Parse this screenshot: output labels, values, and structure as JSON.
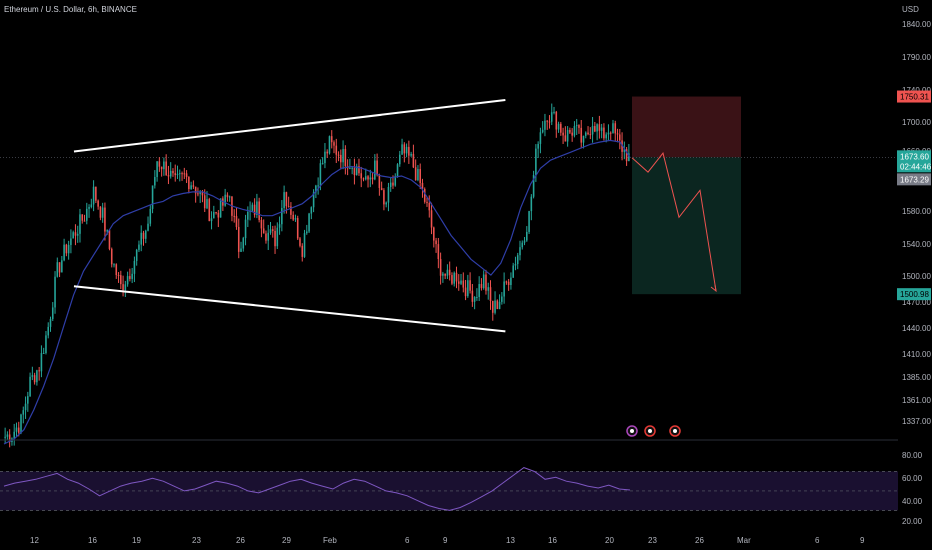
{
  "header": {
    "title": "Ethereum / U.S. Dollar, 6h, BINANCE"
  },
  "currency": "USD",
  "price_axis": {
    "ticks": [
      "1840.00",
      "1790.00",
      "1740.00",
      "1700.00",
      "1660.00",
      "1620.00",
      "1580.00",
      "1540.00",
      "1500.00",
      "1470.00",
      "1440.00",
      "1410.00",
      "1385.00",
      "1361.00",
      "1337.00"
    ],
    "tags": {
      "stop": "1750.31",
      "last": "1673.60",
      "countdown": "02:44:46",
      "ma": "1673.29",
      "target": "1500.98"
    }
  },
  "rsi_axis": {
    "ticks": [
      "80.00",
      "60.00",
      "40.00",
      "20.00"
    ]
  },
  "time_axis": {
    "ticks": [
      "12",
      "16",
      "19",
      "23",
      "26",
      "29",
      "Feb",
      "6",
      "9",
      "13",
      "16",
      "20",
      "23",
      "26",
      "Mar",
      "6",
      "9"
    ]
  },
  "colors": {
    "bg": "#000000",
    "up": "#26a69a",
    "down": "#ef5350",
    "ma": "#2f3ea8",
    "trendline": "#ffffff",
    "projection": "#ef5350",
    "stop_zone": "#3a1216",
    "target_zone": "#0b2620",
    "rsi_line": "#7e57c2"
  },
  "chart_data": {
    "type": "candlestick",
    "title": "Ethereum / U.S. Dollar, 6h, BINANCE",
    "interval": "6h",
    "ylabel": "USD",
    "ylim": [
      1317,
      1862
    ],
    "close_path": [
      1320,
      1325,
      1340,
      1390,
      1410,
      1460,
      1530,
      1560,
      1580,
      1600,
      1630,
      1600,
      1545,
      1510,
      1530,
      1560,
      1590,
      1670,
      1660,
      1640,
      1650,
      1640,
      1620,
      1600,
      1610,
      1625,
      1560,
      1600,
      1610,
      1580,
      1570,
      1630,
      1600,
      1560,
      1620,
      1660,
      1690,
      1680,
      1670,
      1660,
      1640,
      1660,
      1610,
      1640,
      1680,
      1670,
      1640,
      1600,
      1540,
      1520,
      1525,
      1510,
      1500,
      1520,
      1480,
      1500,
      1530,
      1560,
      1600,
      1700,
      1730,
      1720,
      1700,
      1710,
      1690,
      1720,
      1700,
      1712,
      1690,
      1673.6
    ],
    "ma_path": [
      1312,
      1318,
      1330,
      1355,
      1385,
      1420,
      1460,
      1500,
      1530,
      1550,
      1570,
      1590,
      1600,
      1605,
      1610,
      1615,
      1618,
      1625,
      1628,
      1630,
      1630,
      1625,
      1618,
      1612,
      1608,
      1605,
      1600,
      1600,
      1605,
      1610,
      1615,
      1625,
      1640,
      1652,
      1660,
      1662,
      1660,
      1655,
      1650,
      1648,
      1650,
      1645,
      1635,
      1615,
      1595,
      1575,
      1560,
      1545,
      1535,
      1525,
      1540,
      1570,
      1610,
      1640,
      1660,
      1670,
      1675,
      1680,
      1685,
      1690,
      1693,
      1695,
      1693,
      1673.29
    ],
    "patterns": [
      {
        "type": "trendline",
        "role": "upper",
        "from": {
          "time": "Jan 17",
          "price": 1681
        },
        "to": {
          "time": "Feb 23",
          "price": 1746
        }
      },
      {
        "type": "trendline",
        "role": "lower",
        "from": {
          "time": "Jan 17",
          "price": 1511
        },
        "to": {
          "time": "Feb 23",
          "price": 1454
        }
      }
    ],
    "position": {
      "side": "short",
      "entry": 1673.6,
      "stop": 1750.31,
      "target": 1500.98,
      "projection": [
        1673,
        1655,
        1679,
        1598,
        1632,
        1505
      ]
    },
    "rsi": {
      "ylim": [
        15,
        90
      ],
      "bands": [
        70,
        50,
        30
      ],
      "values": [
        55,
        58,
        60,
        62,
        65,
        68,
        62,
        58,
        52,
        45,
        50,
        55,
        58,
        60,
        63,
        60,
        55,
        50,
        52,
        56,
        60,
        58,
        55,
        50,
        48,
        52,
        56,
        60,
        62,
        58,
        55,
        52,
        58,
        62,
        60,
        55,
        50,
        48,
        45,
        40,
        35,
        32,
        30,
        33,
        38,
        44,
        50,
        58,
        66,
        74,
        70,
        62,
        64,
        60,
        58,
        55,
        53,
        56,
        52,
        51
      ]
    }
  }
}
